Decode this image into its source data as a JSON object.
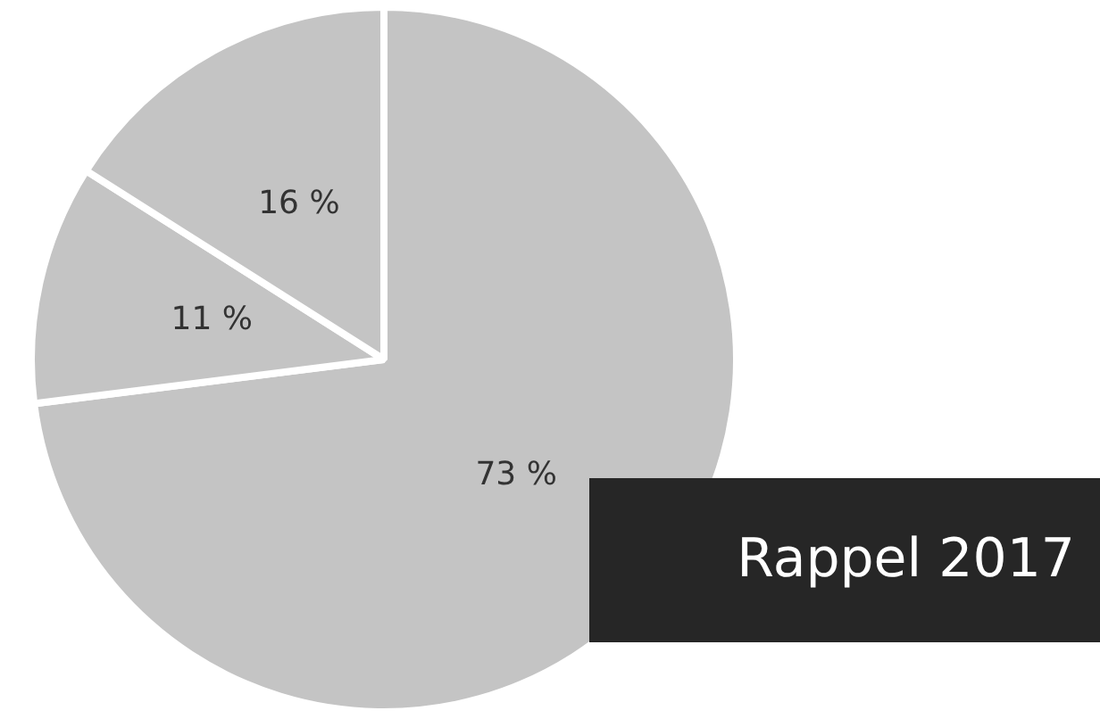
{
  "chart_data": {
    "type": "pie",
    "title": "Rappel 2017",
    "categories": [
      null,
      null,
      null
    ],
    "values": [
      73,
      11,
      16
    ],
    "colors": [
      "#c4c4c4",
      "#c4c4c4",
      "#c4c4c4"
    ],
    "value_labels": [
      "73 %",
      "11 %",
      "16 %"
    ],
    "legend": false
  }
}
